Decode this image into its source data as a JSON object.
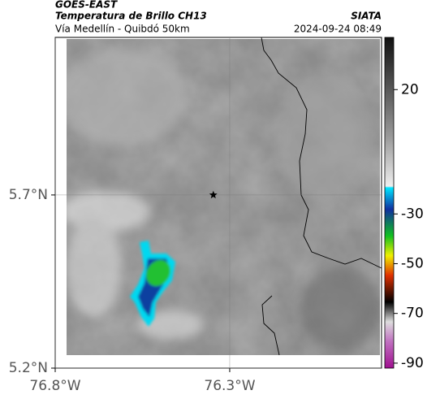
{
  "header": {
    "source": "GOES-EAST",
    "title": "Temperatura de Brillo CH13",
    "subtitle": "Vía Medellín - Quibdó 50km",
    "agency": "SIATA",
    "timestamp": "2024-09-24 08:49"
  },
  "map": {
    "xlim": [
      -76.8,
      -75.865
    ],
    "ylim": [
      5.2,
      6.155
    ],
    "xticks": [
      {
        "value": -76.8,
        "label": "76.8°W"
      },
      {
        "value": -76.3,
        "label": "76.3°W"
      }
    ],
    "yticks": [
      {
        "value": 5.7,
        "label": "5.7°N"
      },
      {
        "value": 5.2,
        "label": "5.2°N"
      }
    ],
    "marker": {
      "lon": -76.347,
      "lat": 5.7
    }
  },
  "colorbar": {
    "clim": [
      -92,
      41
    ],
    "ticks": [
      20,
      -30,
      -50,
      -70,
      -90
    ]
  }
}
